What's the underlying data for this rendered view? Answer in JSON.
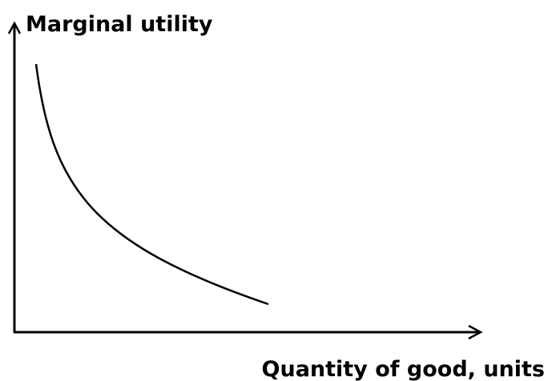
{
  "y_axis_label": "Marginal utility",
  "x_axis_label": "Quantity of good, units"
}
